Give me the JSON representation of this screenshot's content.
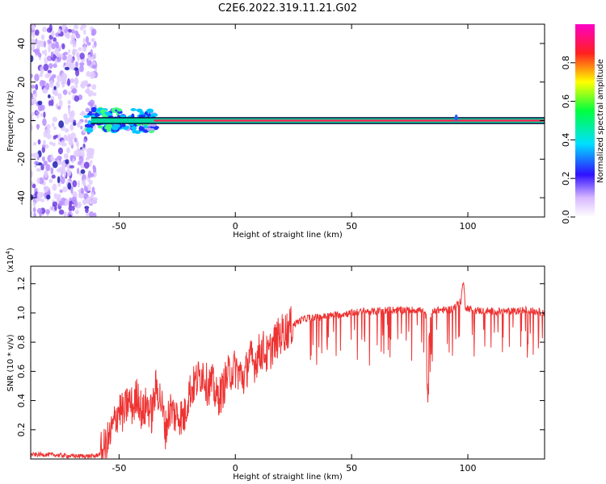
{
  "title": "C2E6.2022.319.11.21.G02",
  "chart_data": [
    {
      "type": "heatmap",
      "xlabel": "Height of straight line (km)",
      "ylabel": "Frequency (Hz)",
      "xlim": [
        -88,
        133
      ],
      "ylim": [
        -50,
        50
      ],
      "x_ticks": [
        -50,
        0,
        50,
        100
      ],
      "y_ticks": [
        -40,
        -20,
        0,
        20,
        40
      ],
      "colorbar": {
        "label": "Normalized spectral amplitude",
        "range": [
          0,
          1
        ],
        "ticks": [
          0.0,
          0.2,
          0.4,
          0.6,
          0.8
        ],
        "colors": [
          "#ffffff",
          "#d0a8ff",
          "#0000ff",
          "#00ffff",
          "#00ff00",
          "#ffff00",
          "#ff0000",
          "#ff00ff"
        ]
      },
      "carrier": {
        "frequency_hz": 0,
        "x_start": -62,
        "x_end": 133
      },
      "noise_region": {
        "x_start": -88,
        "x_end": -60
      }
    },
    {
      "type": "line",
      "xlabel": "Height of straight line (km)",
      "ylabel": "SNR (10 * v/v)",
      "y_multiplier": "(x10",
      "y_exponent": "4",
      "xlim": [
        -88,
        133
      ],
      "ylim": [
        0,
        1.32
      ],
      "x_ticks": [
        -50,
        0,
        50,
        100
      ],
      "y_ticks": [
        0.2,
        0.4,
        0.6,
        0.8,
        1.0,
        1.2
      ],
      "line_color": "#ee3333",
      "series": [
        {
          "x": [
            -88,
            -80,
            -70,
            -60,
            -58,
            -56,
            -54,
            -52,
            -50,
            -48,
            -46,
            -44,
            -42,
            -40,
            -38,
            -36,
            -34,
            -32,
            -30,
            -28,
            -26,
            -24,
            -22,
            -20,
            -18,
            -16,
            -14,
            -12,
            -10,
            -8,
            -6,
            -4,
            -2,
            0,
            2,
            4,
            6,
            8,
            10,
            12,
            14,
            16,
            18,
            20,
            22,
            25,
            28,
            32,
            36,
            40,
            45,
            50,
            55,
            60,
            65,
            70,
            75,
            80,
            82,
            83,
            84,
            85,
            88,
            92,
            95,
            97,
            98,
            99,
            102,
            110,
            120,
            125,
            130,
            133
          ],
          "y": [
            0.03,
            0.03,
            0.02,
            0.02,
            0.04,
            0.08,
            0.15,
            0.25,
            0.35,
            0.3,
            0.4,
            0.35,
            0.45,
            0.3,
            0.38,
            0.3,
            0.5,
            0.4,
            0.2,
            0.35,
            0.3,
            0.3,
            0.28,
            0.45,
            0.5,
            0.55,
            0.6,
            0.5,
            0.52,
            0.42,
            0.45,
            0.55,
            0.6,
            0.62,
            0.58,
            0.55,
            0.7,
            0.65,
            0.72,
            0.75,
            0.7,
            0.78,
            0.82,
            0.86,
            0.88,
            0.92,
            0.95,
            0.97,
            0.97,
            0.98,
            0.99,
            1.0,
            1.01,
            1.01,
            1.02,
            1.02,
            1.02,
            1.02,
            0.98,
            0.75,
            0.98,
            1.02,
            1.02,
            1.02,
            1.05,
            1.08,
            1.22,
            1.04,
            1.02,
            1.01,
            1.01,
            1.02,
            1.01,
            1.0
          ]
        }
      ]
    }
  ]
}
